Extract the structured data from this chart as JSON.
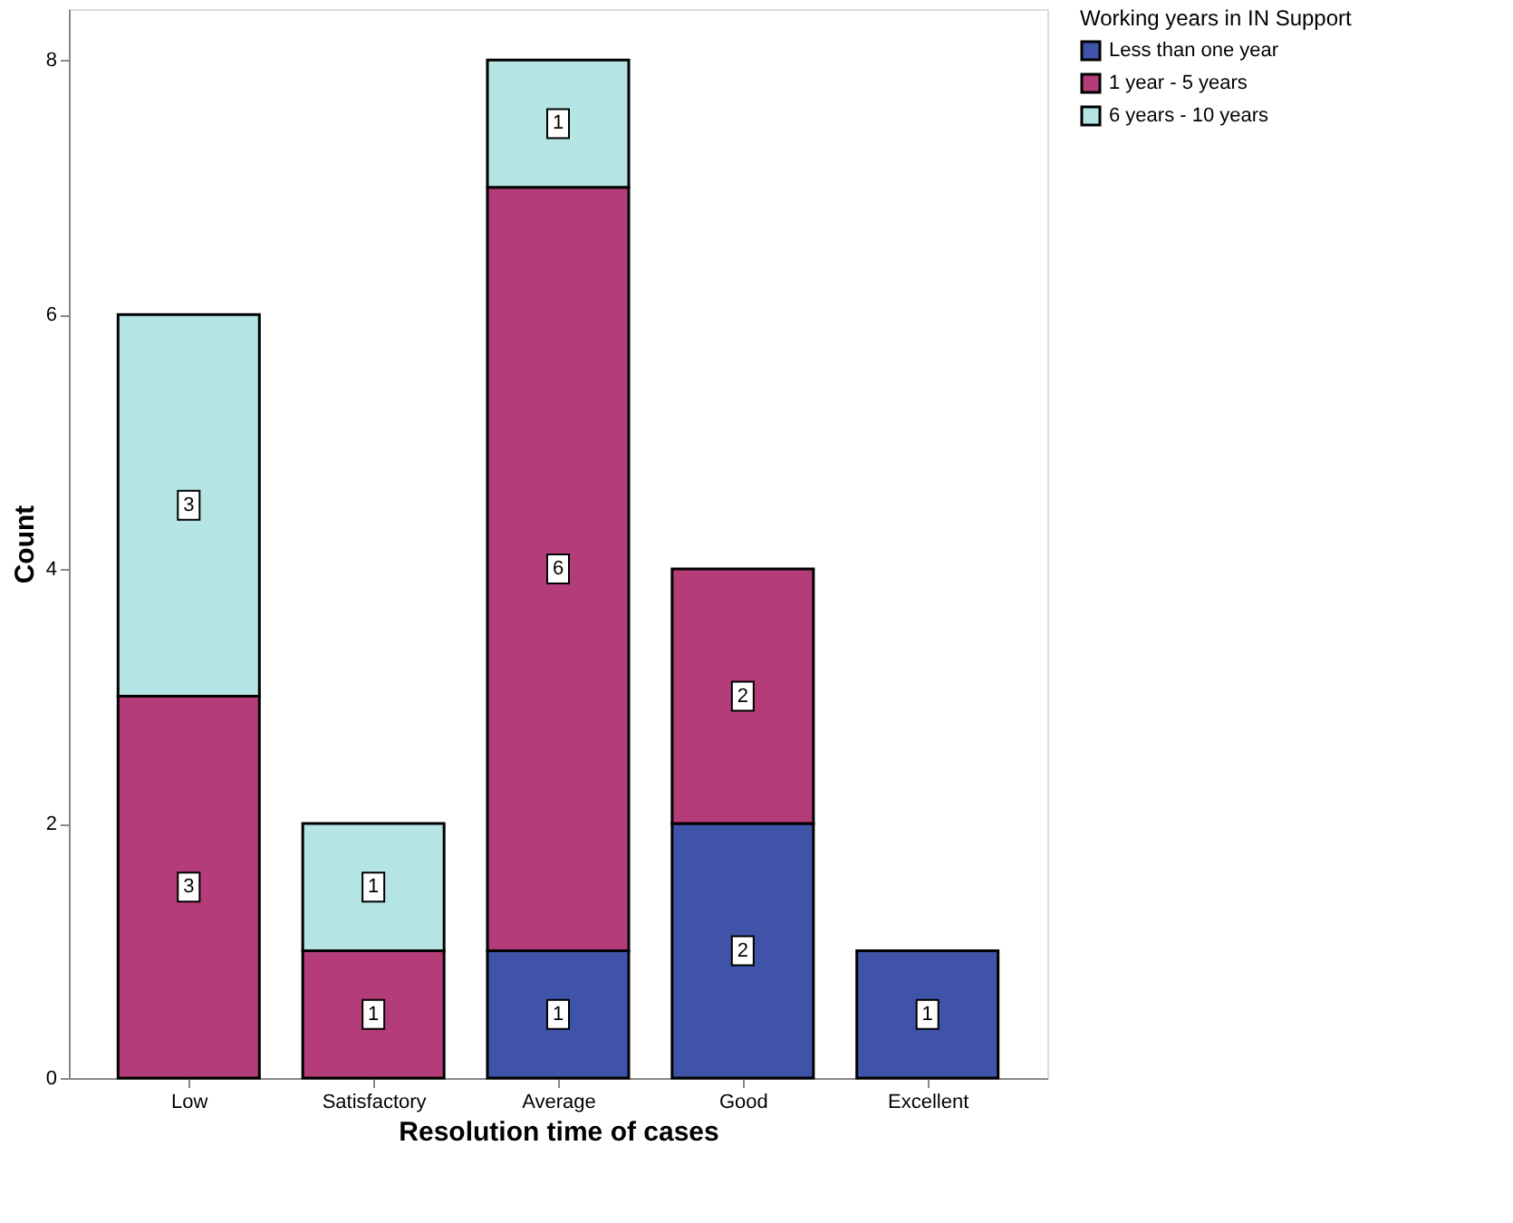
{
  "chart_data": {
    "type": "bar",
    "stacked": true,
    "xlabel": "Resolution time of cases",
    "ylabel": "Count",
    "legend_title": "Working years in IN Support",
    "categories": [
      "Low",
      "Satisfactory",
      "Average",
      "Good",
      "Excellent"
    ],
    "series": [
      {
        "name": "Less than one year",
        "color": "#3f54a8",
        "values": [
          null,
          null,
          1,
          2,
          1
        ]
      },
      {
        "name": "1 year - 5 years",
        "color": "#b43c78",
        "values": [
          3,
          1,
          6,
          2,
          null
        ]
      },
      {
        "name": "6 years - 10 years",
        "color": "#b4e4e4",
        "values": [
          3,
          1,
          1,
          null,
          null
        ]
      }
    ],
    "ylim": [
      0,
      8.4
    ],
    "yticks": [
      0,
      2,
      4,
      6,
      8
    ],
    "grid": false,
    "legend": "top right",
    "data_labels": true
  }
}
